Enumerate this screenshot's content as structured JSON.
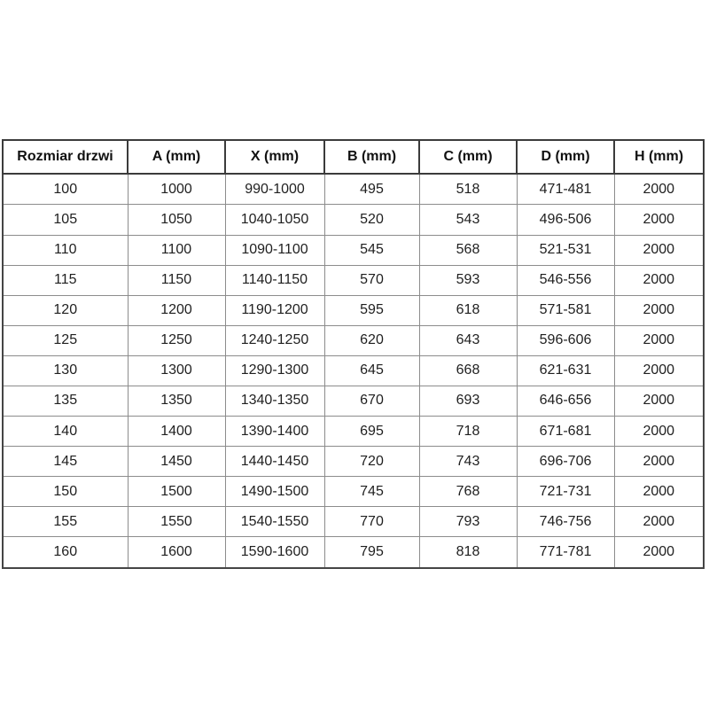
{
  "colors": {
    "background": "#ffffff",
    "header_border": "#3b3b3b",
    "outer_border": "#454545",
    "grid_border": "#8c8c8c",
    "header_text": "#111111",
    "cell_text": "#1f1f1f"
  },
  "chart_data": {
    "type": "table",
    "columns": [
      "Rozmiar drzwi",
      "A (mm)",
      "X (mm)",
      "B (mm)",
      "C (mm)",
      "D (mm)",
      "H (mm)"
    ],
    "rows": [
      [
        "100",
        "1000",
        "990-1000",
        "495",
        "518",
        "471-481",
        "2000"
      ],
      [
        "105",
        "1050",
        "1040-1050",
        "520",
        "543",
        "496-506",
        "2000"
      ],
      [
        "110",
        "1100",
        "1090-1100",
        "545",
        "568",
        "521-531",
        "2000"
      ],
      [
        "115",
        "1150",
        "1140-1150",
        "570",
        "593",
        "546-556",
        "2000"
      ],
      [
        "120",
        "1200",
        "1190-1200",
        "595",
        "618",
        "571-581",
        "2000"
      ],
      [
        "125",
        "1250",
        "1240-1250",
        "620",
        "643",
        "596-606",
        "2000"
      ],
      [
        "130",
        "1300",
        "1290-1300",
        "645",
        "668",
        "621-631",
        "2000"
      ],
      [
        "135",
        "1350",
        "1340-1350",
        "670",
        "693",
        "646-656",
        "2000"
      ],
      [
        "140",
        "1400",
        "1390-1400",
        "695",
        "718",
        "671-681",
        "2000"
      ],
      [
        "145",
        "1450",
        "1440-1450",
        "720",
        "743",
        "696-706",
        "2000"
      ],
      [
        "150",
        "1500",
        "1490-1500",
        "745",
        "768",
        "721-731",
        "2000"
      ],
      [
        "155",
        "1550",
        "1540-1550",
        "770",
        "793",
        "746-756",
        "2000"
      ],
      [
        "160",
        "1600",
        "1590-1600",
        "795",
        "818",
        "771-781",
        "2000"
      ]
    ]
  }
}
